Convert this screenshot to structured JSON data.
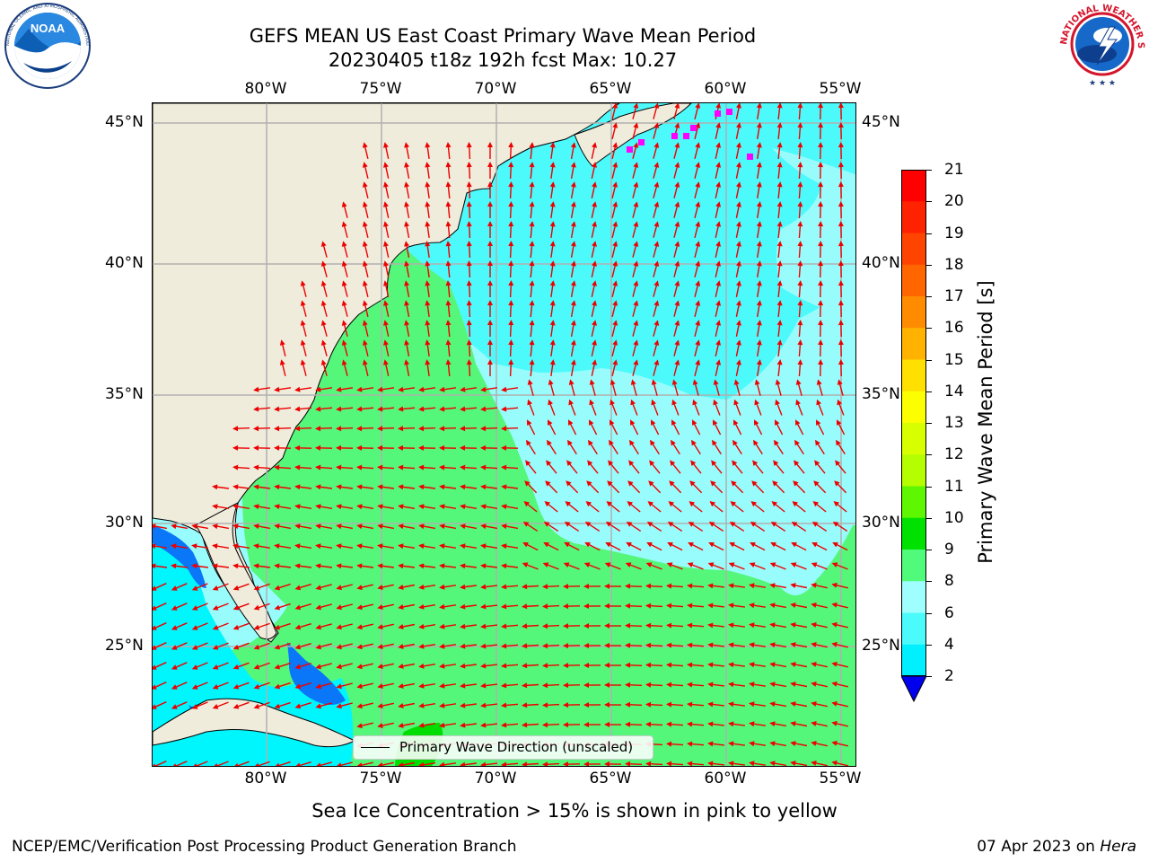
{
  "header": {
    "title_line1": "GEFS MEAN US East Coast Primary Wave Mean Period",
    "title_line2": "20230405 t18z 192h fcst   Max: 10.27"
  },
  "logos": {
    "left": "NOAA",
    "left_ring": "NATIONAL OCEANIC AND ATMOSPHERIC ADMINISTRATION · U.S. DEPARTMENT OF COMMERCE",
    "right_ring": "NATIONAL WEATHER SERVICE"
  },
  "map": {
    "lon_ticks": [
      "80°W",
      "75°W",
      "70°W",
      "65°W",
      "60°W",
      "55°W"
    ],
    "lat_ticks": [
      "45°N",
      "40°N",
      "35°N",
      "30°N",
      "25°N"
    ],
    "colors": {
      "land": "#efecdc",
      "zone_2_4": "#0a76f8",
      "zone_4_6": "#00f6fd",
      "zone_6_8": "#4cfafc",
      "zone_8_9": "#98fcfc",
      "zone_9_10": "#55f77a",
      "zone_10_11": "#00dd00",
      "arrow": "#ee0000",
      "grid": "#b0b0b0",
      "ice": "#ff00ff"
    },
    "legend": "Primary Wave Direction (unscaled)"
  },
  "colorbar": {
    "title": "Primary Wave Mean Period [s]",
    "labels": [
      "21",
      "20",
      "19",
      "18",
      "17",
      "16",
      "15",
      "14",
      "13",
      "12",
      "11",
      "10",
      "9",
      "8",
      "6",
      "4",
      "2"
    ],
    "colors": [
      "#ff0000",
      "#ff2200",
      "#ff4400",
      "#ff6600",
      "#ff8c00",
      "#ffb300",
      "#ffe000",
      "#fcff00",
      "#d7ff00",
      "#b4fe00",
      "#5ef600",
      "#00e100",
      "#50fa7a",
      "#9ffefe",
      "#4bfbfc",
      "#00f0ff",
      "#0a74fb"
    ],
    "under_color": "#0000ee"
  },
  "caption": "Sea Ice Concentration > 15% is shown in pink to yellow",
  "footer": {
    "left": "NCEP/EMC/Verification Post Processing Product Generation Branch",
    "right_date": "07 Apr 2023 on ",
    "right_machine": "Hera"
  }
}
